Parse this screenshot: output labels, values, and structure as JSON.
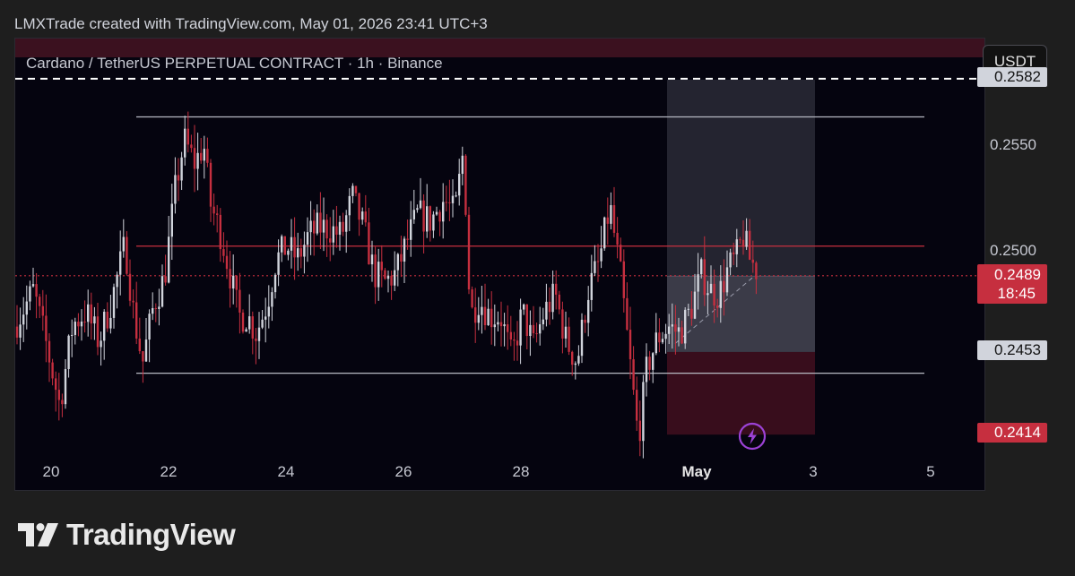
{
  "header": {
    "text": "LMXTrade created with TradingView.com, May 01, 2026 23:41 UTC+3"
  },
  "symbol": {
    "text": "Cardano / TetherUS PERPETUAL CONTRACT · 1h · Binance"
  },
  "unit_button": {
    "label": "USDT"
  },
  "price_scale": {
    "ticks": [
      {
        "label": "0.2550",
        "value": 0.255
      },
      {
        "label": "0.2500",
        "value": 0.25
      }
    ],
    "badges": [
      {
        "label": "0.2582",
        "value": 0.2582,
        "bg": "#d1d4dc",
        "fg": "#131313"
      },
      {
        "label": "0.2453",
        "value": 0.2453,
        "bg": "#d1d4dc",
        "fg": "#131313"
      },
      {
        "label": "0.2414",
        "value": 0.2414,
        "bg": "#c62f3f",
        "fg": "#ffffff"
      }
    ],
    "last_price": {
      "label": "0.2489",
      "countdown": "18:45",
      "value": 0.2489,
      "bg": "#c62f3f",
      "fg": "#ffffff"
    }
  },
  "time_axis": {
    "labels": [
      {
        "text": "20",
        "bold": false
      },
      {
        "text": "22",
        "bold": false
      },
      {
        "text": "24",
        "bold": false
      },
      {
        "text": "26",
        "bold": false
      },
      {
        "text": "28",
        "bold": false
      },
      {
        "text": "May",
        "bold": true
      },
      {
        "text": "3",
        "bold": false
      },
      {
        "text": "5",
        "bold": false
      }
    ]
  },
  "chart_data": {
    "type": "candlestick",
    "interval": "1h",
    "ylim": [
      0.2387,
      0.2601
    ],
    "colors": {
      "up": "#d1d4dc",
      "down": "#c62f3f",
      "background": "#05040f"
    },
    "levels": [
      {
        "name": "dashed-target",
        "value": 0.2582,
        "style": "dashed",
        "color": "#ffffff"
      },
      {
        "name": "range-high",
        "value": 0.2564,
        "style": "solid",
        "color": "#b7b9c3"
      },
      {
        "name": "resistance",
        "value": 0.2503,
        "style": "solid",
        "color": "#c62f3f"
      },
      {
        "name": "range-low",
        "value": 0.2443,
        "style": "solid",
        "color": "#b7b9c3"
      },
      {
        "name": "last-price",
        "value": 0.2489,
        "style": "dotted",
        "color": "#c62f3f"
      }
    ],
    "position": {
      "entry": 0.2489,
      "stop": 0.2453,
      "zone_low": 0.2414,
      "target": 0.2582,
      "profit_color": "rgba(200,205,222,0.28)",
      "loss_color": "rgba(120,25,45,0.45)"
    },
    "close_path": [
      [
        0,
        0.2465
      ],
      [
        18,
        0.2482
      ],
      [
        30,
        0.2456
      ],
      [
        42,
        0.2428
      ],
      [
        54,
        0.2466
      ],
      [
        66,
        0.2472
      ],
      [
        78,
        0.2458
      ],
      [
        90,
        0.2478
      ],
      [
        102,
        0.2504
      ],
      [
        110,
        0.247
      ],
      [
        118,
        0.2448
      ],
      [
        128,
        0.2475
      ],
      [
        138,
        0.2488
      ],
      [
        148,
        0.253
      ],
      [
        156,
        0.2553
      ],
      [
        166,
        0.2542
      ],
      [
        174,
        0.2551
      ],
      [
        180,
        0.2523
      ],
      [
        190,
        0.2508
      ],
      [
        198,
        0.249
      ],
      [
        206,
        0.247
      ],
      [
        214,
        0.247
      ],
      [
        222,
        0.2462
      ],
      [
        232,
        0.2476
      ],
      [
        240,
        0.2496
      ],
      [
        250,
        0.2503
      ],
      [
        260,
        0.2497
      ],
      [
        270,
        0.2508
      ],
      [
        280,
        0.2512
      ],
      [
        290,
        0.2511
      ],
      [
        300,
        0.2508
      ],
      [
        310,
        0.2526
      ],
      [
        320,
        0.2512
      ],
      [
        330,
        0.249
      ],
      [
        340,
        0.2486
      ],
      [
        350,
        0.249
      ],
      [
        360,
        0.2505
      ],
      [
        370,
        0.2518
      ],
      [
        382,
        0.2515
      ],
      [
        394,
        0.2525
      ],
      [
        404,
        0.2518
      ],
      [
        412,
        0.2549
      ],
      [
        418,
        0.247
      ],
      [
        426,
        0.2478
      ],
      [
        436,
        0.247
      ],
      [
        446,
        0.247
      ],
      [
        456,
        0.245
      ],
      [
        466,
        0.2472
      ],
      [
        476,
        0.2456
      ],
      [
        486,
        0.2472
      ],
      [
        496,
        0.248
      ],
      [
        506,
        0.2458
      ],
      [
        516,
        0.2448
      ],
      [
        526,
        0.2482
      ],
      [
        536,
        0.2495
      ],
      [
        546,
        0.2522
      ],
      [
        556,
        0.2488
      ],
      [
        566,
        0.244
      ],
      [
        572,
        0.2412
      ],
      [
        580,
        0.2446
      ],
      [
        590,
        0.246
      ],
      [
        600,
        0.2465
      ],
      [
        610,
        0.2462
      ],
      [
        620,
        0.2473
      ],
      [
        630,
        0.249
      ],
      [
        638,
        0.2482
      ],
      [
        646,
        0.248
      ],
      [
        654,
        0.2492
      ],
      [
        662,
        0.2498
      ],
      [
        668,
        0.2508
      ],
      [
        674,
        0.2497
      ],
      [
        680,
        0.2492
      ]
    ],
    "candle_count": 230
  }
}
